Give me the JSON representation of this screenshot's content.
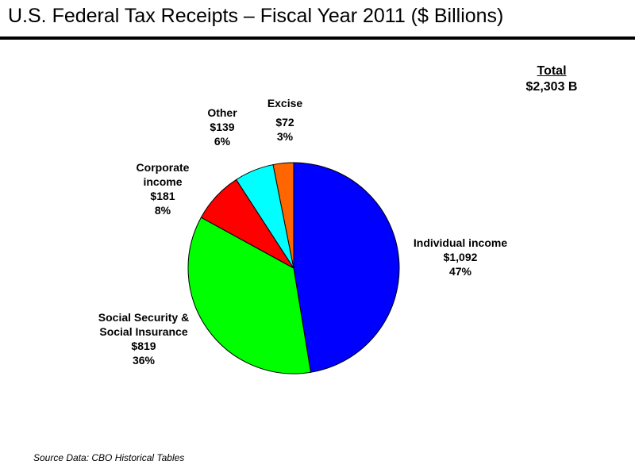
{
  "page": {
    "title": "U.S. Federal Tax Receipts – Fiscal Year 2011 ($ Billions)",
    "source": "Source Data: CBO Historical Tables"
  },
  "total": {
    "heading": "Total",
    "value": "$2,303 B"
  },
  "chart_data": {
    "type": "pie",
    "title": "U.S. Federal Tax Receipts – Fiscal Year 2011 ($ Billions)",
    "unit": "$ Billions",
    "total": 2303,
    "slices": [
      {
        "name": "Individual income",
        "value": 1092,
        "value_label": "$1,092",
        "percent_label": "47%",
        "color": "#0000ff"
      },
      {
        "name": "Social Security & Social Insurance",
        "value": 819,
        "value_label": "$819",
        "percent_label": "36%",
        "color": "#00ff00"
      },
      {
        "name": "Corporate income",
        "value": 181,
        "value_label": "$181",
        "percent_label": "8%",
        "color": "#ff0000"
      },
      {
        "name": "Other",
        "value": 139,
        "value_label": "$139",
        "percent_label": "6%",
        "color": "#00ffff"
      },
      {
        "name": "Excise",
        "value": 72,
        "value_label": "$72",
        "percent_label": "3%",
        "color": "#ff6600"
      }
    ],
    "legend": "none"
  },
  "labels": {
    "individual": {
      "line1": "Individual income",
      "value": "$1,092",
      "percent": "47%"
    },
    "social": {
      "line1": "Social Security &",
      "line2": "Social Insurance",
      "value": "$819",
      "percent": "36%"
    },
    "corporate": {
      "line1": "Corporate",
      "line2": "income",
      "value": "$181",
      "percent": "8%"
    },
    "other": {
      "line1": "Other",
      "value": "$139",
      "percent": "6%"
    },
    "excise": {
      "line1": "Excise",
      "value": "$72",
      "percent": "3%"
    }
  }
}
